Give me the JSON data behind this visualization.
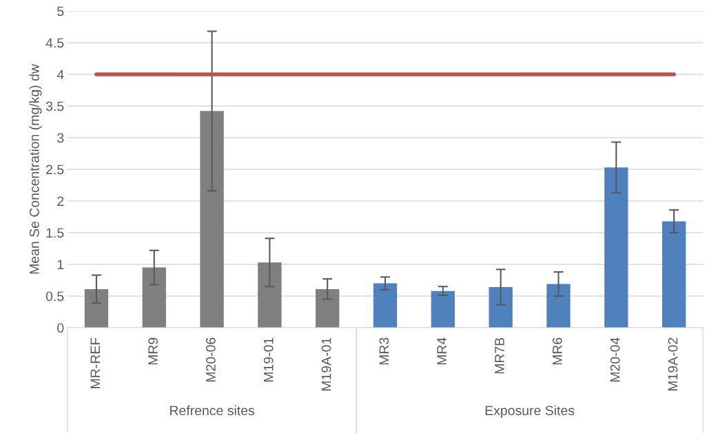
{
  "chart_data": {
    "type": "bar",
    "ylabel": "Mean Se Concentration (mg/kg) dw",
    "categories": [
      "MR-REF",
      "MR9",
      "M20-06",
      "M19-01",
      "M19A-01",
      "MR3",
      "MR4",
      "MR7B",
      "MR6",
      "M20-04",
      "M19A-02"
    ],
    "series": [
      {
        "values": [
          0.61,
          0.95,
          3.42,
          1.03,
          0.61,
          0.7,
          0.58,
          0.64,
          0.69,
          2.53,
          1.68
        ],
        "colors": [
          "#7f7f7f",
          "#7f7f7f",
          "#7f7f7f",
          "#7f7f7f",
          "#7f7f7f",
          "#4f81bd",
          "#4f81bd",
          "#4f81bd",
          "#4f81bd",
          "#4f81bd",
          "#4f81bd"
        ],
        "errors": [
          0.22,
          0.27,
          1.26,
          0.38,
          0.16,
          0.1,
          0.07,
          0.28,
          0.19,
          0.4,
          0.18
        ]
      },
      {
        "type": "line",
        "color": "#c0504d",
        "values": [
          4,
          4,
          4,
          4,
          4,
          4,
          4,
          4,
          4,
          4,
          4
        ]
      }
    ],
    "annotations": [
      "Refrence sites",
      "Exposure Sites"
    ],
    "ylim": [
      0,
      5
    ],
    "yticks": [
      0,
      0.5,
      1,
      1.5,
      2,
      2.5,
      3,
      3.5,
      4,
      4.5,
      5
    ],
    "grid": "y",
    "legend": false
  }
}
